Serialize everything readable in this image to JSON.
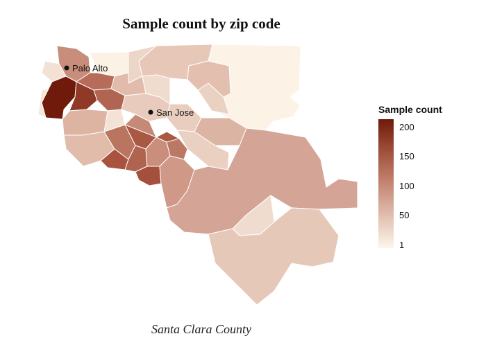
{
  "title": "Sample count by zip code",
  "caption": "Santa Clara County",
  "legend": {
    "title": "Sample count",
    "ticks": [
      "200",
      "150",
      "100",
      "50",
      "1"
    ],
    "colors": {
      "low": "#fdf6ea",
      "high": "#6f1a0a"
    }
  },
  "cities": [
    {
      "name": "Palo Alto"
    },
    {
      "name": "San Jose"
    }
  ]
}
